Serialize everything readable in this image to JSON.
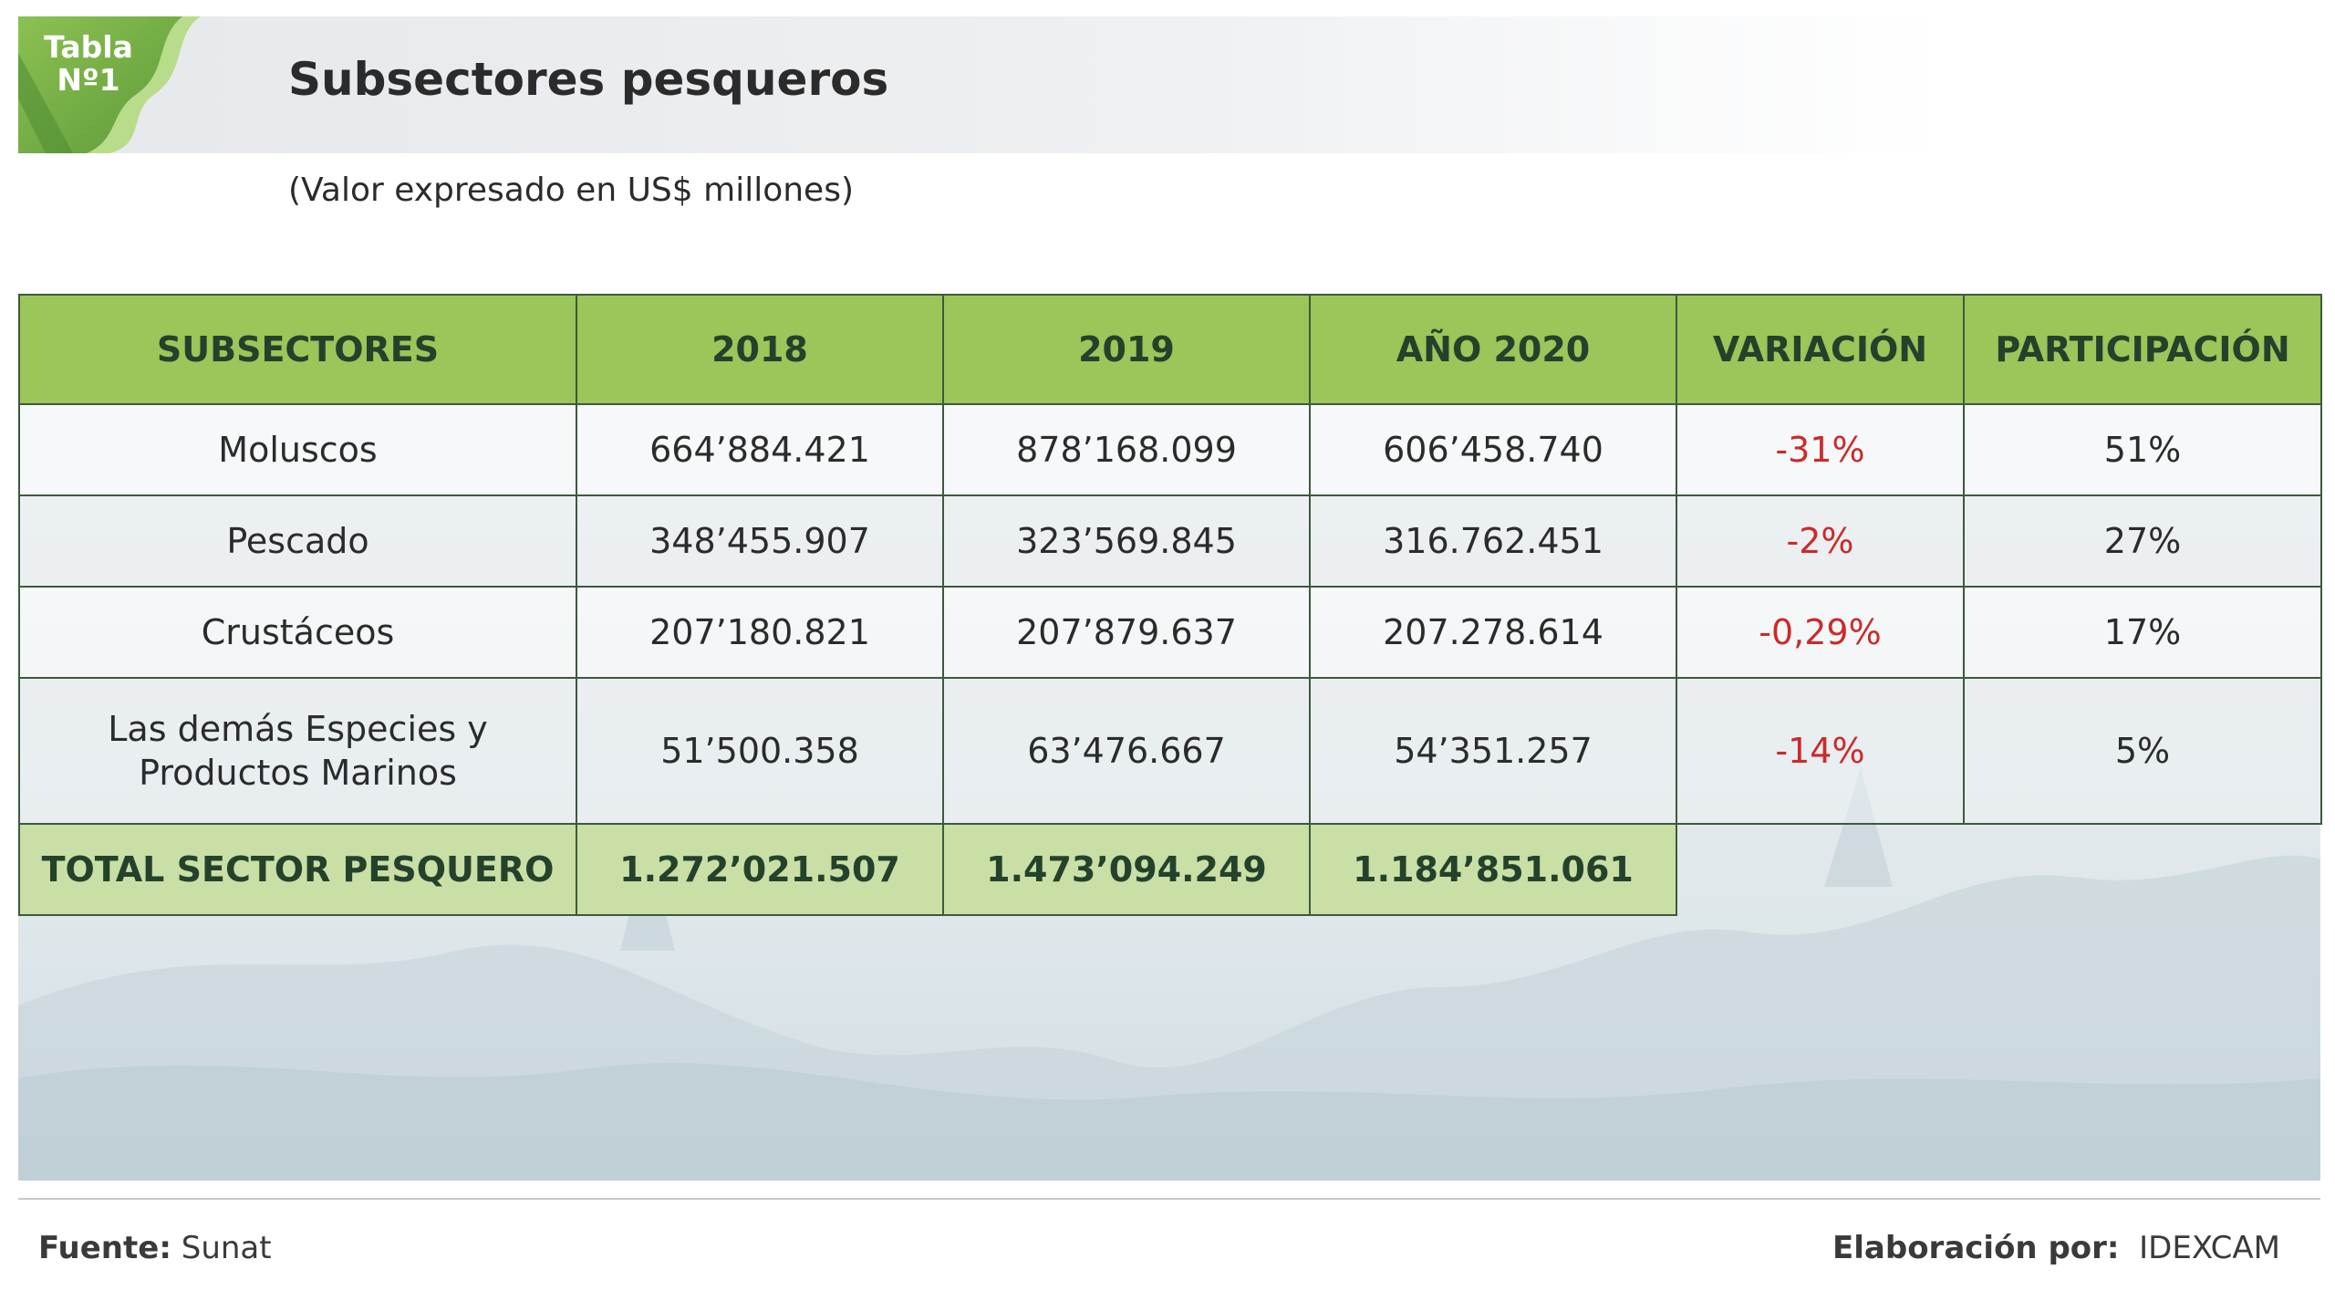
{
  "badge": {
    "line1": "Tabla",
    "line2": "Nº1"
  },
  "title": "Subsectores pesqueros",
  "subtitle": "(Valor expresado en US$ millones)",
  "table": {
    "headers": [
      "SUBSECTORES",
      "2018",
      "2019",
      "AÑO 2020",
      "VARIACIÓN",
      "PARTICIPACIÓN"
    ],
    "rows": [
      {
        "name": "Moluscos",
        "y2018": "664’884.421",
        "y2019": "878’168.099",
        "y2020": "606’458.740",
        "variation": "-31%",
        "share": "51%"
      },
      {
        "name": "Pescado",
        "y2018": "348’455.907",
        "y2019": "323’569.845",
        "y2020": "316.762.451",
        "variation": "-2%",
        "share": "27%"
      },
      {
        "name": "Crustáceos",
        "y2018": "207’180.821",
        "y2019": "207’879.637",
        "y2020": "207.278.614",
        "variation": "-0,29%",
        "share": "17%"
      },
      {
        "name_line1": "Las demás Especies y",
        "name_line2": "Productos Marinos",
        "y2018": "51’500.358",
        "y2019": "63’476.667",
        "y2020": "54’351.257",
        "variation": "-14%",
        "share": "5%"
      }
    ],
    "total": {
      "label": "TOTAL SECTOR PESQUERO",
      "y2018": "1.272’021.507",
      "y2019": "1.473’094.249",
      "y2020": "1.184’851.061"
    }
  },
  "footer": {
    "source_label": "Fuente:",
    "source_value": "Sunat",
    "credit_label": "Elaboración por:",
    "credit_value": "IDEXCAM"
  },
  "colors": {
    "header_green": "#9cc55a",
    "total_green": "#c9dfa6",
    "negative_red": "#cc2a2a",
    "badge_green": "#7fb24a"
  }
}
